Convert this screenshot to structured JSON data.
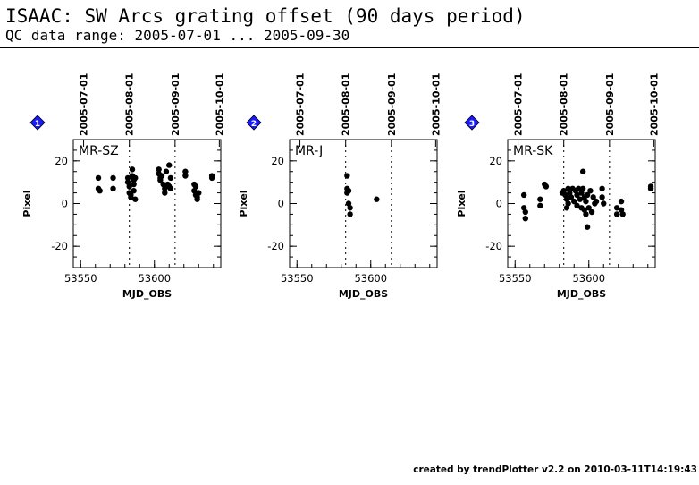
{
  "header": {
    "title": "ISAAC: SW Arcs grating offset (90 days period)",
    "subtitle": "QC data range: 2005-07-01 ... 2005-09-30"
  },
  "footer": {
    "text": "created by trendPlotter v2.2 on 2010-03-11T14:19:43"
  },
  "colors": {
    "background": "#ffffff",
    "ink": "#000000",
    "marker_diamond": "#1a1aff"
  },
  "chart_data": [
    {
      "type": "scatter",
      "marker": "1",
      "label": "MR-SZ",
      "xlabel": "MJD_OBS",
      "ylabel": "Pixel",
      "xlim": [
        53545,
        53645
      ],
      "ylim": [
        -30,
        30
      ],
      "xticks": [
        53550,
        53600
      ],
      "yticks": [
        -20,
        0,
        20
      ],
      "top_axis_dates": [
        "2005-07-01",
        "2005-08-01",
        "2005-09-01",
        "2005-10-01"
      ],
      "vlines_dates": [
        "2005-08-01",
        "2005-09-01"
      ],
      "points": [
        {
          "x": 53562,
          "y": 12
        },
        {
          "x": 53562,
          "y": 7
        },
        {
          "x": 53563,
          "y": 6
        },
        {
          "x": 53572,
          "y": 12
        },
        {
          "x": 53572,
          "y": 7
        },
        {
          "x": 53582,
          "y": 12
        },
        {
          "x": 53582,
          "y": 10
        },
        {
          "x": 53583,
          "y": 8
        },
        {
          "x": 53583,
          "y": 5
        },
        {
          "x": 53584,
          "y": 3
        },
        {
          "x": 53584,
          "y": 4
        },
        {
          "x": 53585,
          "y": 16
        },
        {
          "x": 53585,
          "y": 13
        },
        {
          "x": 53586,
          "y": 11
        },
        {
          "x": 53586,
          "y": 9
        },
        {
          "x": 53586,
          "y": 6
        },
        {
          "x": 53587,
          "y": 12
        },
        {
          "x": 53587,
          "y": 2
        },
        {
          "x": 53603,
          "y": 16
        },
        {
          "x": 53603,
          "y": 14
        },
        {
          "x": 53604,
          "y": 12
        },
        {
          "x": 53604,
          "y": 11
        },
        {
          "x": 53605,
          "y": 13
        },
        {
          "x": 53606,
          "y": 9
        },
        {
          "x": 53607,
          "y": 7
        },
        {
          "x": 53607,
          "y": 5
        },
        {
          "x": 53608,
          "y": 15
        },
        {
          "x": 53609,
          "y": 9
        },
        {
          "x": 53610,
          "y": 8
        },
        {
          "x": 53610,
          "y": 18
        },
        {
          "x": 53611,
          "y": 7
        },
        {
          "x": 53611,
          "y": 12
        },
        {
          "x": 53621,
          "y": 15
        },
        {
          "x": 53621,
          "y": 13
        },
        {
          "x": 53627,
          "y": 9
        },
        {
          "x": 53627,
          "y": 6
        },
        {
          "x": 53628,
          "y": 8
        },
        {
          "x": 53628,
          "y": 4
        },
        {
          "x": 53629,
          "y": 3
        },
        {
          "x": 53629,
          "y": 2
        },
        {
          "x": 53630,
          "y": 5
        },
        {
          "x": 53639,
          "y": 13
        },
        {
          "x": 53639,
          "y": 12
        }
      ]
    },
    {
      "type": "scatter",
      "marker": "2",
      "label": "MR-J",
      "xlabel": "MJD_OBS",
      "ylabel": "Pixel",
      "xlim": [
        53545,
        53645
      ],
      "ylim": [
        -30,
        30
      ],
      "xticks": [
        53550,
        53600
      ],
      "yticks": [
        -20,
        0,
        20
      ],
      "top_axis_dates": [
        "2005-07-01",
        "2005-08-01",
        "2005-09-01",
        "2005-10-01"
      ],
      "vlines_dates": [
        "2005-08-01",
        "2005-09-01"
      ],
      "points": [
        {
          "x": 53584,
          "y": 13
        },
        {
          "x": 53584,
          "y": 7
        },
        {
          "x": 53584,
          "y": 5
        },
        {
          "x": 53585,
          "y": 6
        },
        {
          "x": 53585,
          "y": 0
        },
        {
          "x": 53586,
          "y": -2
        },
        {
          "x": 53586,
          "y": -5
        },
        {
          "x": 53604,
          "y": 2
        }
      ]
    },
    {
      "type": "scatter",
      "marker": "3",
      "label": "MR-SK",
      "xlabel": "MJD_OBS",
      "ylabel": "Pixel",
      "xlim": [
        53545,
        53645
      ],
      "ylim": [
        -30,
        30
      ],
      "xticks": [
        53550,
        53600
      ],
      "yticks": [
        -20,
        0,
        20
      ],
      "top_axis_dates": [
        "2005-07-01",
        "2005-08-01",
        "2005-09-01",
        "2005-10-01"
      ],
      "vlines_dates": [
        "2005-08-01",
        "2005-09-01"
      ],
      "points": [
        {
          "x": 53556,
          "y": 4
        },
        {
          "x": 53556,
          "y": -2
        },
        {
          "x": 53557,
          "y": -4
        },
        {
          "x": 53557,
          "y": -7
        },
        {
          "x": 53567,
          "y": 2
        },
        {
          "x": 53567,
          "y": -1
        },
        {
          "x": 53570,
          "y": 9
        },
        {
          "x": 53571,
          "y": 8
        },
        {
          "x": 53582,
          "y": 5
        },
        {
          "x": 53583,
          "y": 6
        },
        {
          "x": 53584,
          "y": 4
        },
        {
          "x": 53585,
          "y": 2
        },
        {
          "x": 53585,
          "y": -2
        },
        {
          "x": 53586,
          "y": 7
        },
        {
          "x": 53586,
          "y": 0
        },
        {
          "x": 53587,
          "y": 5
        },
        {
          "x": 53588,
          "y": 3
        },
        {
          "x": 53589,
          "y": 7
        },
        {
          "x": 53590,
          "y": 1
        },
        {
          "x": 53591,
          "y": 6
        },
        {
          "x": 53592,
          "y": 4
        },
        {
          "x": 53592,
          "y": -1
        },
        {
          "x": 53593,
          "y": 7
        },
        {
          "x": 53594,
          "y": 2
        },
        {
          "x": 53595,
          "y": 5
        },
        {
          "x": 53595,
          "y": -2
        },
        {
          "x": 53596,
          "y": 15
        },
        {
          "x": 53596,
          "y": 7
        },
        {
          "x": 53597,
          "y": 3
        },
        {
          "x": 53597,
          "y": -3
        },
        {
          "x": 53598,
          "y": 1
        },
        {
          "x": 53598,
          "y": -5
        },
        {
          "x": 53599,
          "y": 4
        },
        {
          "x": 53599,
          "y": -11
        },
        {
          "x": 53600,
          "y": -2
        },
        {
          "x": 53601,
          "y": 6
        },
        {
          "x": 53602,
          "y": -4
        },
        {
          "x": 53603,
          "y": 3
        },
        {
          "x": 53604,
          "y": 0
        },
        {
          "x": 53605,
          "y": 1
        },
        {
          "x": 53609,
          "y": 7
        },
        {
          "x": 53609,
          "y": 3
        },
        {
          "x": 53610,
          "y": 0
        },
        {
          "x": 53619,
          "y": -5
        },
        {
          "x": 53619,
          "y": -2
        },
        {
          "x": 53622,
          "y": 1
        },
        {
          "x": 53622,
          "y": -3
        },
        {
          "x": 53623,
          "y": -5
        },
        {
          "x": 53642,
          "y": 8
        },
        {
          "x": 53642,
          "y": 7
        }
      ]
    }
  ]
}
